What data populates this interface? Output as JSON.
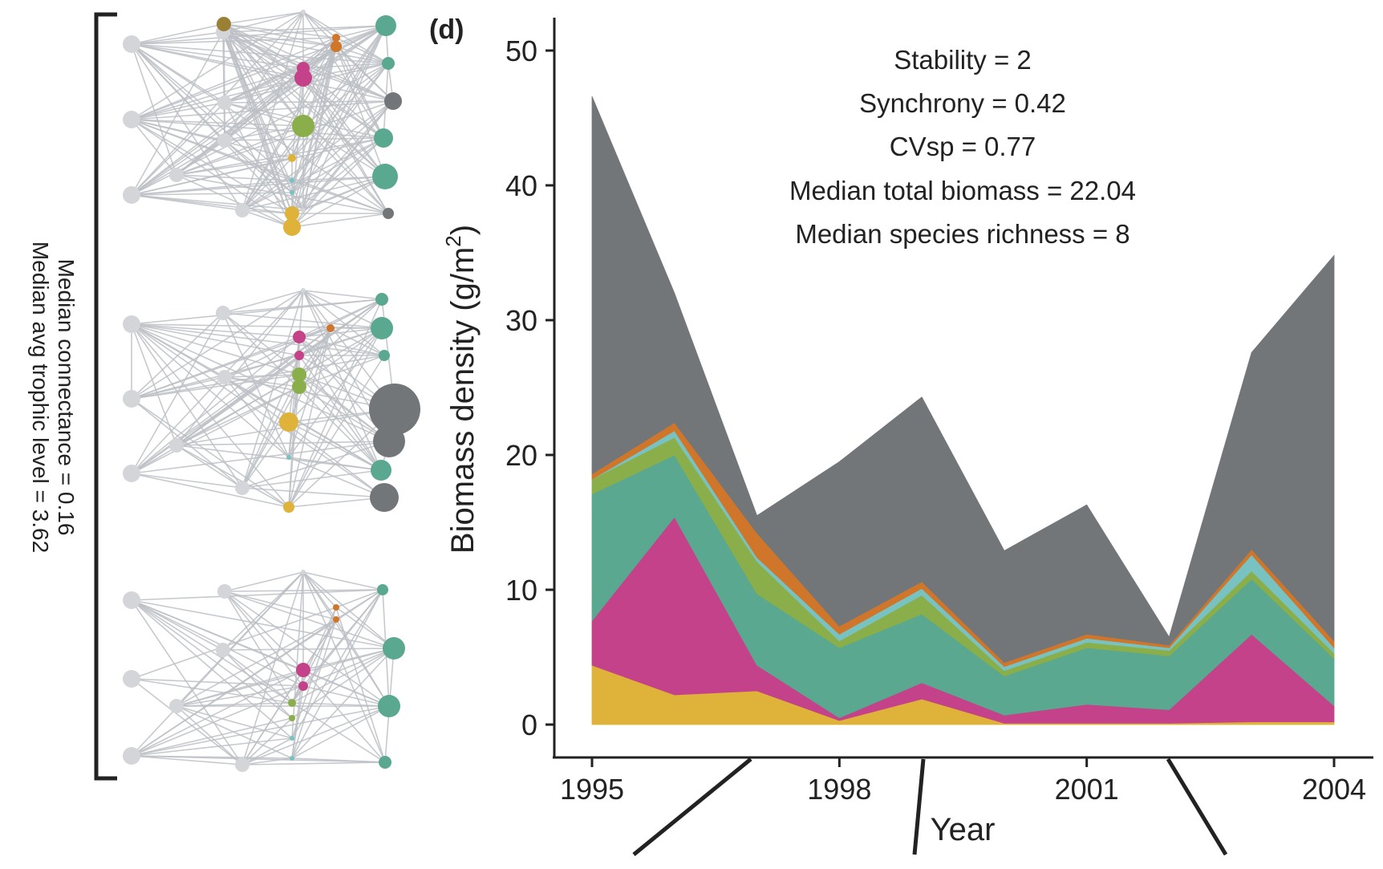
{
  "panel_label": "(d)",
  "left_panel": {
    "caption_line1": "Median connectance = 0.16",
    "caption_line2": "Median avg trophic level = 3.62"
  },
  "stats": {
    "line1": "Stability = 2",
    "line2": "Synchrony = 0.42",
    "line3": "CVsp = 0.77",
    "line4": "Median total biomass = 22.04",
    "line5": "Median species richness = 8"
  },
  "colors": {
    "gray": "#737679",
    "orange": "#d0762a",
    "cyan": "#78c2c2",
    "green": "#8aaf4a",
    "teal": "#5aa88f",
    "magenta": "#c4428a",
    "yellow": "#dfb23a",
    "node_gray": "#d3d5d9",
    "edge_gray": "#bcbfc4"
  },
  "chart_data": {
    "type": "area",
    "stacked": true,
    "xlabel": "Year",
    "ylabel": "Biomass density (g/m",
    "ylabel_sup": "2",
    "ylabel_close": ")",
    "xlim": [
      1995,
      2004
    ],
    "ylim": [
      0,
      52
    ],
    "xticks": [
      "1995",
      "1998",
      "2001",
      "2004"
    ],
    "yticks": [
      "0",
      "10",
      "20",
      "30",
      "40",
      "50"
    ],
    "x": [
      1995,
      1996,
      1997,
      1998,
      1999,
      2000,
      2001,
      2002,
      2003,
      2004
    ],
    "series": [
      {
        "color": "#dfb23a",
        "values": [
          4.4,
          2.2,
          2.5,
          0.3,
          1.9,
          0.1,
          0.1,
          0.1,
          0.2,
          0.2
        ]
      },
      {
        "color": "#c4428a",
        "values": [
          3.3,
          13.2,
          1.9,
          0.2,
          1.2,
          0.6,
          1.4,
          1.0,
          6.5,
          1.2
        ]
      },
      {
        "color": "#5aa88f",
        "values": [
          9.4,
          4.6,
          5.3,
          5.2,
          5.1,
          2.9,
          4.2,
          4.0,
          4.1,
          3.5
        ]
      },
      {
        "color": "#8aaf4a",
        "values": [
          1.1,
          1.3,
          2.4,
          0.5,
          1.4,
          0.4,
          0.4,
          0.4,
          0.6,
          0.4
        ]
      },
      {
        "color": "#78c2c2",
        "values": [
          0.0,
          0.5,
          0.3,
          0.5,
          0.5,
          0.3,
          0.3,
          0.2,
          1.2,
          0.4
        ]
      },
      {
        "color": "#d0762a",
        "values": [
          0.4,
          0.6,
          1.8,
          0.6,
          0.5,
          0.3,
          0.3,
          0.2,
          0.4,
          0.5
        ]
      },
      {
        "color": "#737679",
        "values": [
          28.0,
          9.6,
          1.3,
          12.2,
          13.7,
          8.3,
          9.6,
          0.6,
          14.6,
          28.6
        ]
      }
    ]
  }
}
